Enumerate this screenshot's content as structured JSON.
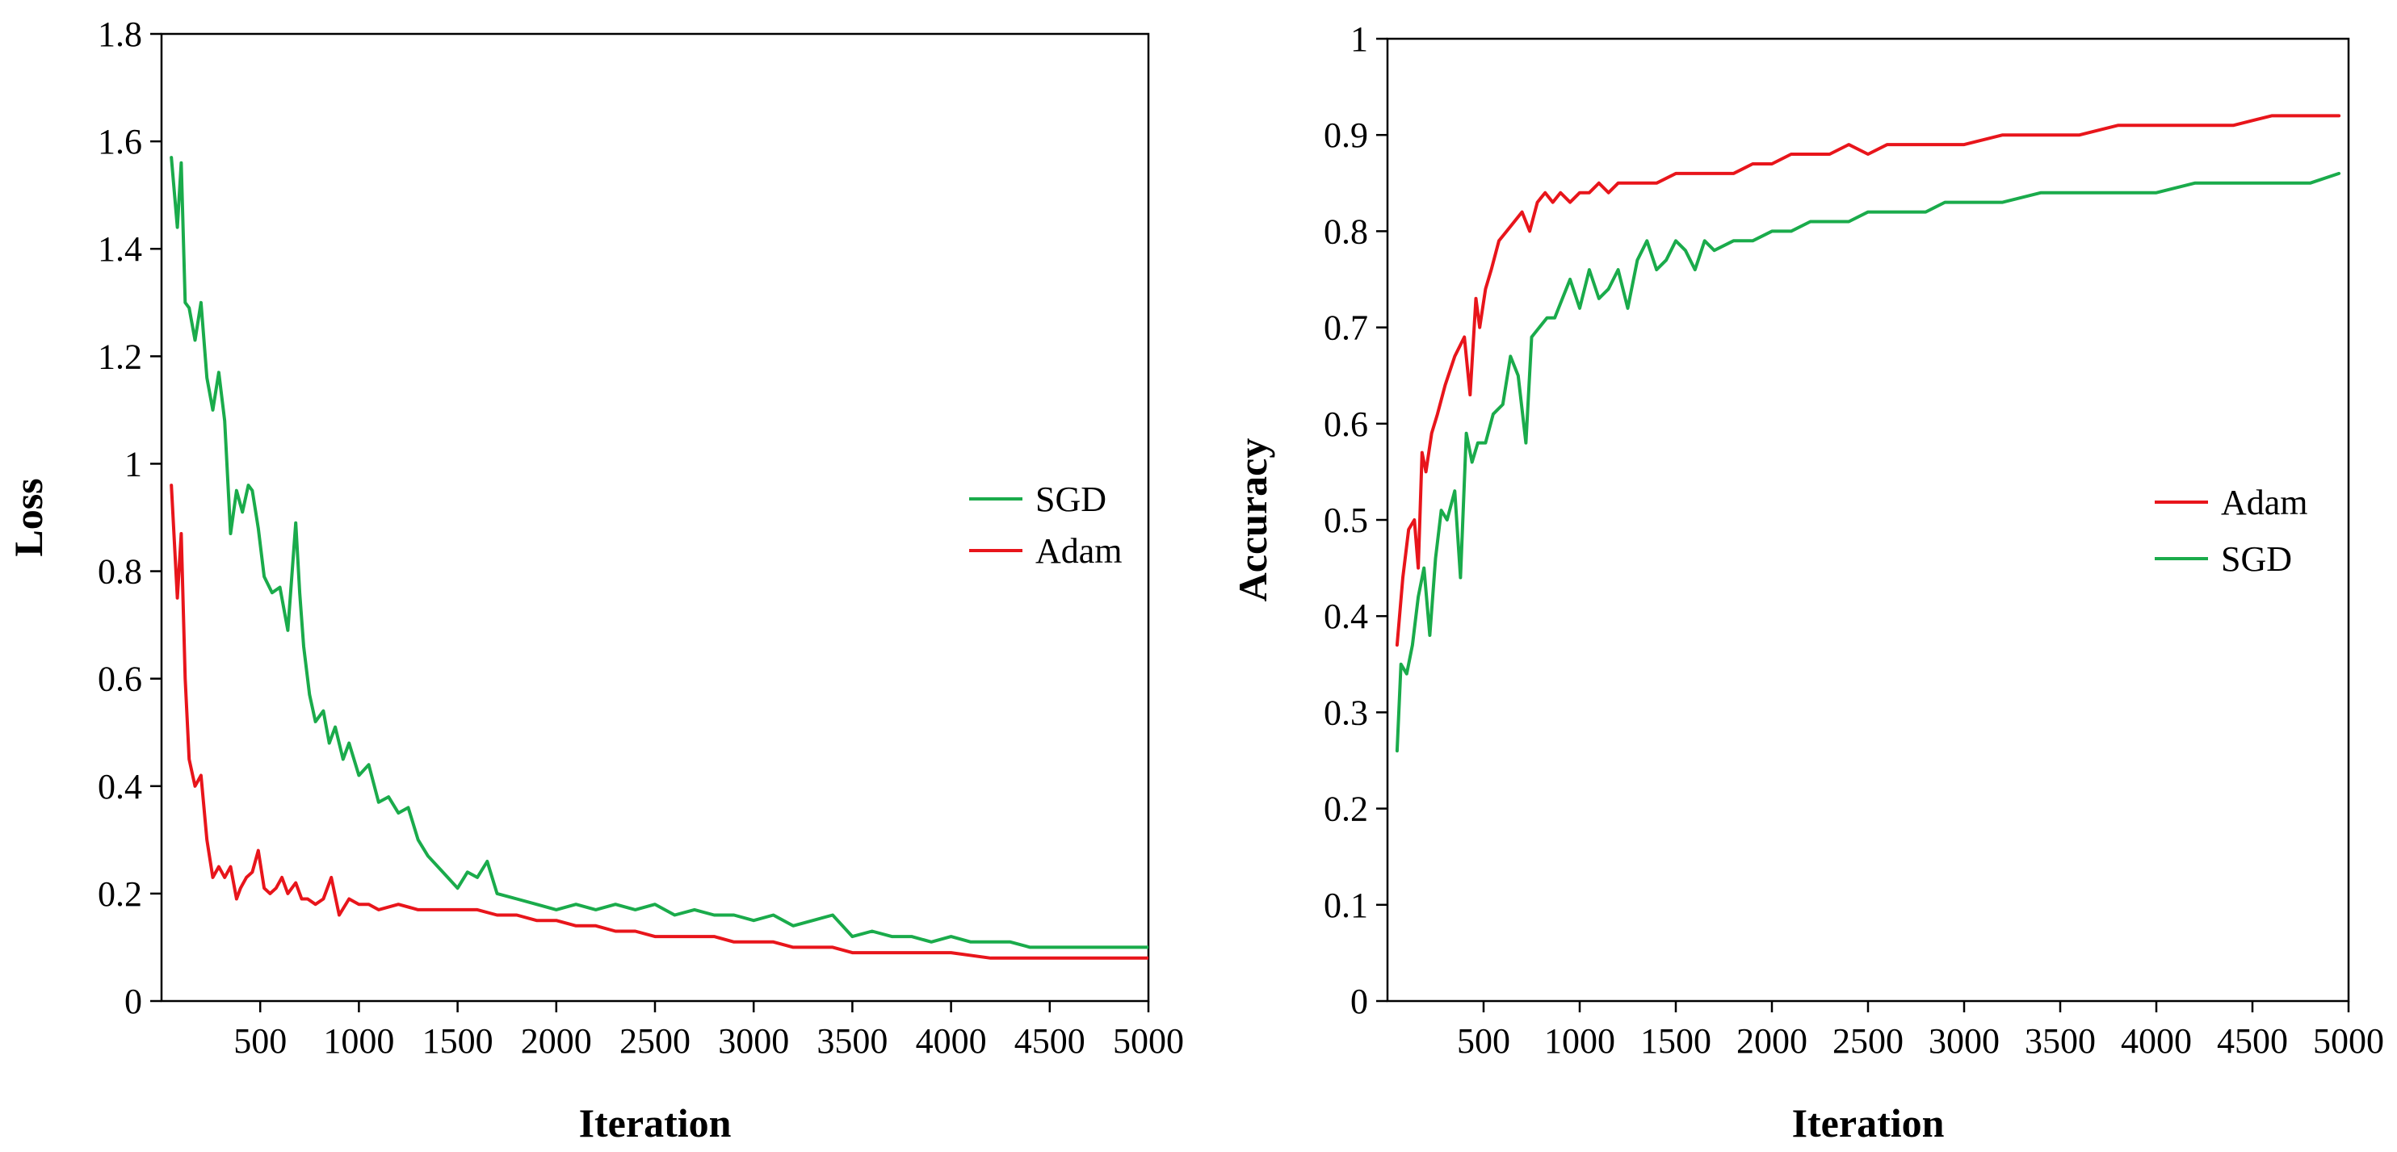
{
  "chart_data": [
    {
      "type": "line",
      "title": "",
      "xlabel": "Iteration",
      "ylabel": "Loss",
      "xlim": [
        0,
        5000
      ],
      "ylim": [
        0,
        1.8
      ],
      "xticks": [
        500,
        1000,
        1500,
        2000,
        2500,
        3000,
        3500,
        4000,
        4500,
        5000
      ],
      "xtick_labels": [
        "500",
        "1000",
        "1500",
        "2000",
        "2500",
        "3000",
        "3500",
        "4000",
        "4500",
        "5000"
      ],
      "yticks": [
        0,
        0.2,
        0.4,
        0.6,
        0.8,
        1,
        1.2,
        1.4,
        1.6,
        1.8
      ],
      "ytick_labels": [
        "0",
        "0.2",
        "0.4",
        "0.6",
        "0.8",
        "1",
        "1.2",
        "1.4",
        "1.6",
        "1.8"
      ],
      "legend_position": "center-right",
      "series": [
        {
          "name": "SGD",
          "color": "#1aab4b",
          "x": [
            50,
            80,
            100,
            120,
            140,
            170,
            200,
            230,
            260,
            290,
            320,
            350,
            380,
            410,
            440,
            460,
            490,
            520,
            560,
            600,
            640,
            680,
            700,
            720,
            750,
            780,
            820,
            850,
            880,
            920,
            950,
            1000,
            1050,
            1100,
            1150,
            1200,
            1250,
            1300,
            1350,
            1400,
            1450,
            1500,
            1550,
            1600,
            1650,
            1700,
            1800,
            1900,
            2000,
            2100,
            2200,
            2300,
            2400,
            2500,
            2600,
            2700,
            2800,
            2900,
            3000,
            3100,
            3200,
            3300,
            3400,
            3500,
            3600,
            3700,
            3800,
            3900,
            4000,
            4100,
            4200,
            4300,
            4400,
            4500,
            4600,
            4700,
            4800,
            4900,
            5000
          ],
          "values": [
            1.57,
            1.44,
            1.56,
            1.3,
            1.29,
            1.23,
            1.3,
            1.16,
            1.1,
            1.17,
            1.08,
            0.87,
            0.95,
            0.91,
            0.96,
            0.95,
            0.88,
            0.79,
            0.76,
            0.77,
            0.69,
            0.89,
            0.76,
            0.66,
            0.57,
            0.52,
            0.54,
            0.48,
            0.51,
            0.45,
            0.48,
            0.42,
            0.44,
            0.37,
            0.38,
            0.35,
            0.36,
            0.3,
            0.27,
            0.25,
            0.23,
            0.21,
            0.24,
            0.23,
            0.26,
            0.2,
            0.19,
            0.18,
            0.17,
            0.18,
            0.17,
            0.18,
            0.17,
            0.18,
            0.16,
            0.17,
            0.16,
            0.16,
            0.15,
            0.16,
            0.14,
            0.15,
            0.16,
            0.12,
            0.13,
            0.12,
            0.12,
            0.11,
            0.12,
            0.11,
            0.11,
            0.11,
            0.1,
            0.1,
            0.1,
            0.1,
            0.1,
            0.1,
            0.1
          ]
        },
        {
          "name": "Adam",
          "color": "#e8151b",
          "x": [
            50,
            80,
            100,
            120,
            140,
            170,
            200,
            230,
            260,
            290,
            320,
            350,
            380,
            400,
            430,
            460,
            490,
            520,
            550,
            580,
            610,
            640,
            680,
            710,
            740,
            780,
            820,
            860,
            900,
            950,
            1000,
            1050,
            1100,
            1200,
            1300,
            1400,
            1500,
            1600,
            1700,
            1800,
            1900,
            2000,
            2100,
            2200,
            2300,
            2400,
            2500,
            2600,
            2700,
            2800,
            2900,
            3000,
            3100,
            3200,
            3300,
            3400,
            3500,
            3600,
            3700,
            3800,
            3900,
            4000,
            4200,
            4400,
            4600,
            4800,
            5000
          ],
          "values": [
            0.96,
            0.75,
            0.87,
            0.6,
            0.45,
            0.4,
            0.42,
            0.3,
            0.23,
            0.25,
            0.23,
            0.25,
            0.19,
            0.21,
            0.23,
            0.24,
            0.28,
            0.21,
            0.2,
            0.21,
            0.23,
            0.2,
            0.22,
            0.19,
            0.19,
            0.18,
            0.19,
            0.23,
            0.16,
            0.19,
            0.18,
            0.18,
            0.17,
            0.18,
            0.17,
            0.17,
            0.17,
            0.17,
            0.16,
            0.16,
            0.15,
            0.15,
            0.14,
            0.14,
            0.13,
            0.13,
            0.12,
            0.12,
            0.12,
            0.12,
            0.11,
            0.11,
            0.11,
            0.1,
            0.1,
            0.1,
            0.09,
            0.09,
            0.09,
            0.09,
            0.09,
            0.09,
            0.08,
            0.08,
            0.08,
            0.08,
            0.08
          ]
        }
      ]
    },
    {
      "type": "line",
      "title": "",
      "xlabel": "Iteration",
      "ylabel": "Accuracy",
      "xlim": [
        0,
        5000
      ],
      "ylim": [
        0,
        1
      ],
      "xticks": [
        500,
        1000,
        1500,
        2000,
        2500,
        3000,
        3500,
        4000,
        4500,
        5000
      ],
      "xtick_labels": [
        "500",
        "1000",
        "1500",
        "2000",
        "2500",
        "3000",
        "3500",
        "4000",
        "4500",
        "5000"
      ],
      "yticks": [
        0,
        0.1,
        0.2,
        0.3,
        0.4,
        0.5,
        0.6,
        0.7,
        0.8,
        0.9,
        1
      ],
      "ytick_labels": [
        "0",
        "0.1",
        "0.2",
        "0.3",
        "0.4",
        "0.5",
        "0.6",
        "0.7",
        "0.8",
        "0.9",
        "1"
      ],
      "legend_position": "center-right",
      "series": [
        {
          "name": "Adam",
          "color": "#e8151b",
          "x": [
            50,
            80,
            110,
            140,
            160,
            180,
            200,
            230,
            260,
            300,
            350,
            400,
            430,
            460,
            480,
            510,
            540,
            580,
            620,
            660,
            700,
            740,
            780,
            820,
            860,
            900,
            950,
            1000,
            1050,
            1100,
            1150,
            1200,
            1300,
            1400,
            1500,
            1600,
            1700,
            1800,
            1900,
            2000,
            2100,
            2200,
            2300,
            2400,
            2500,
            2600,
            2700,
            2800,
            2900,
            3000,
            3200,
            3400,
            3600,
            3800,
            4000,
            4200,
            4400,
            4600,
            4800,
            4950
          ],
          "values": [
            0.37,
            0.44,
            0.49,
            0.5,
            0.45,
            0.57,
            0.55,
            0.59,
            0.61,
            0.64,
            0.67,
            0.69,
            0.63,
            0.73,
            0.7,
            0.74,
            0.76,
            0.79,
            0.8,
            0.81,
            0.82,
            0.8,
            0.83,
            0.84,
            0.83,
            0.84,
            0.83,
            0.84,
            0.84,
            0.85,
            0.84,
            0.85,
            0.85,
            0.85,
            0.86,
            0.86,
            0.86,
            0.86,
            0.87,
            0.87,
            0.88,
            0.88,
            0.88,
            0.89,
            0.88,
            0.89,
            0.89,
            0.89,
            0.89,
            0.89,
            0.9,
            0.9,
            0.9,
            0.91,
            0.91,
            0.91,
            0.91,
            0.92,
            0.92,
            0.92
          ]
        },
        {
          "name": "SGD",
          "color": "#1aab4b",
          "x": [
            50,
            70,
            100,
            130,
            160,
            190,
            220,
            250,
            280,
            310,
            350,
            380,
            410,
            440,
            470,
            510,
            550,
            600,
            640,
            680,
            720,
            750,
            790,
            830,
            870,
            910,
            950,
            1000,
            1050,
            1100,
            1150,
            1200,
            1250,
            1300,
            1350,
            1400,
            1450,
            1500,
            1550,
            1600,
            1650,
            1700,
            1800,
            1900,
            2000,
            2100,
            2200,
            2300,
            2400,
            2500,
            2600,
            2700,
            2800,
            2900,
            3000,
            3200,
            3400,
            3600,
            3800,
            4000,
            4200,
            4400,
            4600,
            4800,
            4950
          ],
          "values": [
            0.26,
            0.35,
            0.34,
            0.37,
            0.42,
            0.45,
            0.38,
            0.46,
            0.51,
            0.5,
            0.53,
            0.44,
            0.59,
            0.56,
            0.58,
            0.58,
            0.61,
            0.62,
            0.67,
            0.65,
            0.58,
            0.69,
            0.7,
            0.71,
            0.71,
            0.73,
            0.75,
            0.72,
            0.76,
            0.73,
            0.74,
            0.76,
            0.72,
            0.77,
            0.79,
            0.76,
            0.77,
            0.79,
            0.78,
            0.76,
            0.79,
            0.78,
            0.79,
            0.79,
            0.8,
            0.8,
            0.81,
            0.81,
            0.81,
            0.82,
            0.82,
            0.82,
            0.82,
            0.83,
            0.83,
            0.83,
            0.84,
            0.84,
            0.84,
            0.84,
            0.85,
            0.85,
            0.85,
            0.85,
            0.86
          ]
        }
      ]
    }
  ]
}
